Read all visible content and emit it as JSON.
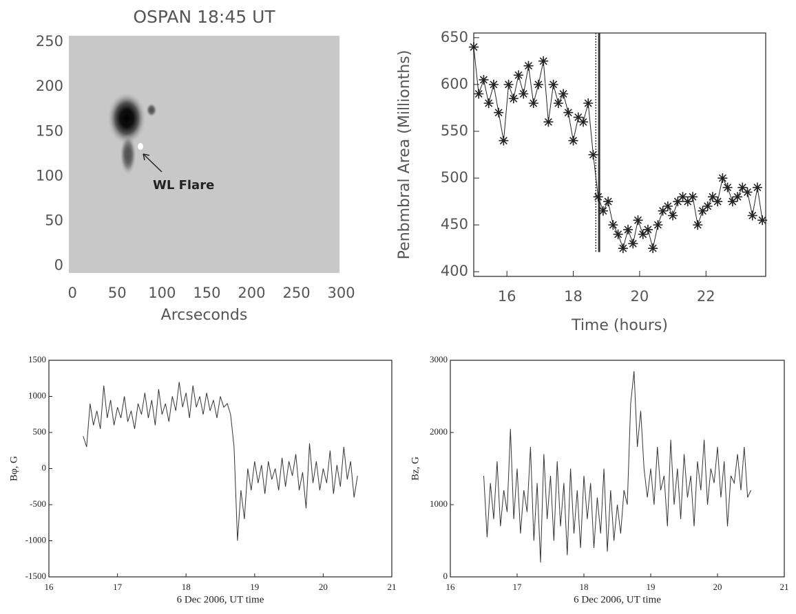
{
  "chart_data": [
    {
      "type": "image",
      "title": "OSPAN 18:45 UT",
      "xlabel": "Arcseconds",
      "annotation": "WL Flare",
      "xlim": [
        -4,
        298
      ],
      "ylim": [
        -8,
        257
      ],
      "xticks": [
        0,
        50,
        100,
        150,
        200,
        250,
        300
      ],
      "yticks": [
        0,
        50,
        100,
        150,
        200,
        250
      ]
    },
    {
      "type": "line",
      "marker": "asterisk",
      "ylabel": "Penbmbral Area (Millionths)",
      "xlabel": "Time (hours)",
      "color": "#222",
      "xlim": [
        15,
        23.8
      ],
      "ylim": [
        395,
        655
      ],
      "xticks": [
        16,
        18,
        20,
        22
      ],
      "yticks": [
        400,
        450,
        500,
        550,
        600,
        650
      ],
      "vlines": [
        18.68,
        18.78
      ],
      "x": [
        15.0,
        15.15,
        15.3,
        15.45,
        15.6,
        15.75,
        15.9,
        16.05,
        16.2,
        16.35,
        16.5,
        16.65,
        16.8,
        16.95,
        17.1,
        17.25,
        17.4,
        17.55,
        17.7,
        17.85,
        18.0,
        18.15,
        18.3,
        18.45,
        18.6,
        18.75,
        18.9,
        19.05,
        19.2,
        19.35,
        19.5,
        19.65,
        19.8,
        19.95,
        20.1,
        20.25,
        20.4,
        20.55,
        20.7,
        20.85,
        21.0,
        21.15,
        21.3,
        21.45,
        21.6,
        21.75,
        21.9,
        22.05,
        22.2,
        22.35,
        22.5,
        22.65,
        22.8,
        22.95,
        23.1,
        23.25,
        23.4,
        23.55,
        23.7
      ],
      "values": [
        640,
        590,
        605,
        580,
        600,
        570,
        540,
        600,
        585,
        610,
        590,
        620,
        580,
        600,
        625,
        560,
        600,
        580,
        590,
        570,
        540,
        565,
        560,
        580,
        525,
        480,
        465,
        475,
        450,
        440,
        425,
        445,
        430,
        455,
        440,
        445,
        425,
        450,
        465,
        470,
        460,
        475,
        480,
        475,
        480,
        450,
        465,
        470,
        480,
        475,
        500,
        490,
        475,
        480,
        490,
        485,
        460,
        490,
        455
      ]
    },
    {
      "type": "line",
      "ylabel": "Bφ, G",
      "xlabel": "6 Dec 2006, UT time",
      "color": "#333",
      "xlim": [
        16,
        21
      ],
      "ylim": [
        -1500,
        1500
      ],
      "xticks": [
        16,
        17,
        18,
        19,
        20,
        21
      ],
      "yticks": [
        -1500,
        -1000,
        -500,
        0,
        500,
        1000,
        1500
      ],
      "x": [
        16.5,
        16.55,
        16.6,
        16.65,
        16.7,
        16.75,
        16.8,
        16.85,
        16.9,
        16.95,
        17.0,
        17.05,
        17.1,
        17.15,
        17.2,
        17.25,
        17.3,
        17.35,
        17.4,
        17.45,
        17.5,
        17.55,
        17.6,
        17.65,
        17.7,
        17.75,
        17.8,
        17.85,
        17.9,
        17.95,
        18.0,
        18.05,
        18.1,
        18.15,
        18.2,
        18.25,
        18.3,
        18.35,
        18.4,
        18.45,
        18.5,
        18.55,
        18.6,
        18.65,
        18.7,
        18.75,
        18.8,
        18.85,
        18.9,
        18.95,
        19.0,
        19.05,
        19.1,
        19.15,
        19.2,
        19.25,
        19.3,
        19.35,
        19.4,
        19.45,
        19.5,
        19.55,
        19.6,
        19.65,
        19.7,
        19.75,
        19.8,
        19.85,
        19.9,
        19.95,
        20.0,
        20.05,
        20.1,
        20.15,
        20.2,
        20.25,
        20.3,
        20.35,
        20.4,
        20.45,
        20.5
      ],
      "values": [
        450,
        300,
        900,
        600,
        800,
        550,
        1150,
        700,
        950,
        600,
        850,
        700,
        1000,
        650,
        800,
        550,
        900,
        750,
        1050,
        700,
        950,
        600,
        1100,
        750,
        900,
        650,
        1000,
        800,
        1200,
        850,
        1050,
        700,
        1150,
        850,
        1000,
        750,
        1050,
        800,
        950,
        700,
        1000,
        850,
        900,
        750,
        300,
        -1000,
        -300,
        -700,
        0,
        -300,
        100,
        -200,
        50,
        -350,
        100,
        -150,
        0,
        -300,
        150,
        -250,
        100,
        -100,
        200,
        -300,
        -50,
        -550,
        350,
        -200,
        100,
        -300,
        0,
        -200,
        250,
        -350,
        50,
        -250,
        300,
        -150,
        100,
        -400,
        -100
      ]
    },
    {
      "type": "line",
      "ylabel": "Bz, G",
      "xlabel": "6 Dec 2006, UT time",
      "color": "#333",
      "xlim": [
        16,
        21
      ],
      "ylim": [
        0,
        3000
      ],
      "xticks": [
        16,
        17,
        18,
        19,
        20,
        21
      ],
      "yticks": [
        0,
        1000,
        2000,
        3000
      ],
      "x": [
        16.5,
        16.55,
        16.6,
        16.65,
        16.7,
        16.75,
        16.8,
        16.85,
        16.9,
        16.95,
        17.0,
        17.05,
        17.1,
        17.15,
        17.2,
        17.25,
        17.3,
        17.35,
        17.4,
        17.45,
        17.5,
        17.55,
        17.6,
        17.65,
        17.7,
        17.75,
        17.8,
        17.85,
        17.9,
        17.95,
        18.0,
        18.05,
        18.1,
        18.15,
        18.2,
        18.25,
        18.3,
        18.35,
        18.4,
        18.45,
        18.5,
        18.55,
        18.6,
        18.65,
        18.7,
        18.75,
        18.8,
        18.85,
        18.9,
        18.95,
        19.0,
        19.05,
        19.1,
        19.15,
        19.2,
        19.25,
        19.3,
        19.35,
        19.4,
        19.45,
        19.5,
        19.55,
        19.6,
        19.65,
        19.7,
        19.75,
        19.8,
        19.85,
        19.9,
        19.95,
        20.0,
        20.05,
        20.1,
        20.15,
        20.2,
        20.25,
        20.3,
        20.35,
        20.4,
        20.45,
        20.5
      ],
      "values": [
        1400,
        550,
        1300,
        800,
        1600,
        700,
        1200,
        900,
        2050,
        800,
        1500,
        600,
        1200,
        900,
        1800,
        500,
        1300,
        200,
        1700,
        800,
        1400,
        500,
        1600,
        700,
        1300,
        300,
        1500,
        600,
        1200,
        400,
        1400,
        800,
        1300,
        400,
        1100,
        600,
        1500,
        350,
        1200,
        500,
        1000,
        600,
        1200,
        1000,
        2400,
        2850,
        1800,
        2300,
        1500,
        1100,
        1500,
        1000,
        1800,
        1200,
        1400,
        700,
        1900,
        1000,
        1500,
        800,
        1700,
        1100,
        1400,
        700,
        1600,
        1200,
        1900,
        1000,
        1500,
        1300,
        1800,
        1100,
        1600,
        700,
        1400,
        1300,
        1700,
        1200,
        1800,
        1100,
        1200
      ]
    }
  ]
}
